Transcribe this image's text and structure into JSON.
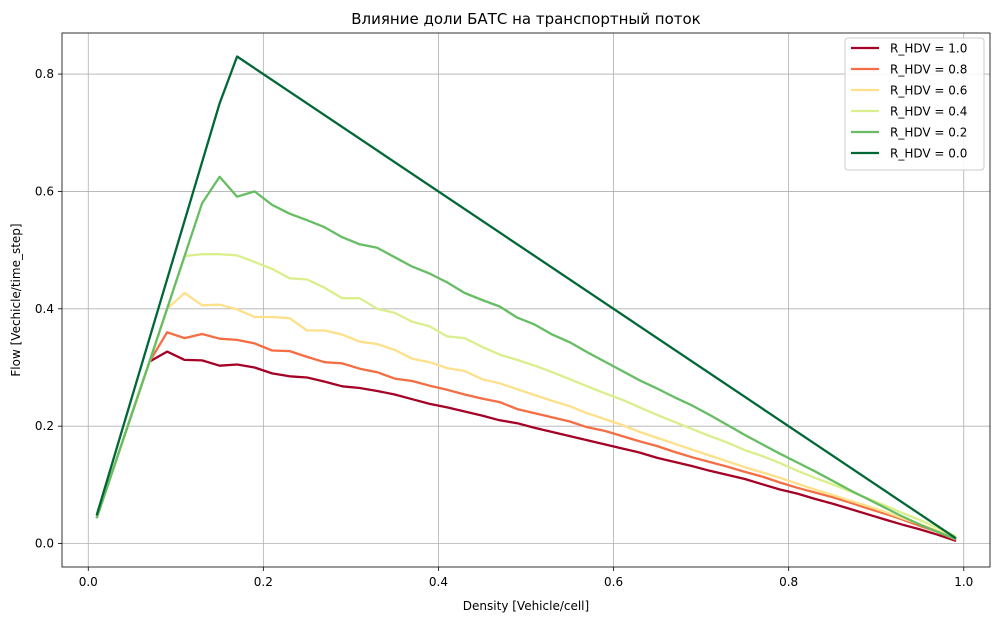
{
  "chart_data": {
    "type": "line",
    "title": "Влияние доли БАТС на транспортный поток",
    "xlabel": "Density [Vehicle/cell]",
    "ylabel": "Flow [Vechicle/time_step]",
    "xlim": [
      -0.03,
      1.03
    ],
    "ylim": [
      -0.04,
      0.87
    ],
    "xticks": [
      0.0,
      0.2,
      0.4,
      0.6,
      0.8,
      1.0
    ],
    "yticks": [
      0.0,
      0.2,
      0.4,
      0.6,
      0.8
    ],
    "grid": true,
    "legend_position": "top-right",
    "series": [
      {
        "name": "R_HDV = 1.0",
        "color": "#a50026",
        "x": [
          0.01,
          0.07,
          0.09,
          0.11,
          0.13,
          0.15,
          0.17,
          0.19,
          0.21,
          0.23,
          0.25,
          0.27,
          0.29,
          0.31,
          0.33,
          0.35,
          0.37,
          0.39,
          0.41,
          0.43,
          0.45,
          0.47,
          0.49,
          0.51,
          0.53,
          0.55,
          0.57,
          0.59,
          0.61,
          0.63,
          0.65,
          0.67,
          0.69,
          0.71,
          0.73,
          0.75,
          0.77,
          0.79,
          0.81,
          0.83,
          0.85,
          0.87,
          0.89,
          0.91,
          0.93,
          0.95,
          0.97,
          0.99
        ],
        "y": [
          0.045,
          0.31,
          0.327,
          0.313,
          0.312,
          0.303,
          0.305,
          0.3,
          0.29,
          0.285,
          0.283,
          0.276,
          0.268,
          0.265,
          0.26,
          0.254,
          0.246,
          0.238,
          0.232,
          0.225,
          0.218,
          0.21,
          0.205,
          0.197,
          0.19,
          0.183,
          0.176,
          0.169,
          0.162,
          0.155,
          0.146,
          0.139,
          0.132,
          0.124,
          0.117,
          0.11,
          0.101,
          0.092,
          0.085,
          0.076,
          0.068,
          0.059,
          0.05,
          0.041,
          0.032,
          0.024,
          0.015,
          0.005
        ]
      },
      {
        "name": "R_HDV = 0.8",
        "color": "#f46d43",
        "x": [
          0.01,
          0.07,
          0.09,
          0.11,
          0.13,
          0.15,
          0.17,
          0.19,
          0.21,
          0.23,
          0.25,
          0.27,
          0.29,
          0.31,
          0.33,
          0.35,
          0.37,
          0.39,
          0.41,
          0.43,
          0.45,
          0.47,
          0.49,
          0.51,
          0.53,
          0.55,
          0.57,
          0.59,
          0.61,
          0.63,
          0.65,
          0.67,
          0.69,
          0.71,
          0.73,
          0.75,
          0.77,
          0.79,
          0.81,
          0.83,
          0.85,
          0.87,
          0.89,
          0.91,
          0.93,
          0.95,
          0.97,
          0.99
        ],
        "y": [
          0.045,
          0.31,
          0.36,
          0.35,
          0.357,
          0.349,
          0.347,
          0.341,
          0.329,
          0.328,
          0.318,
          0.309,
          0.307,
          0.298,
          0.292,
          0.281,
          0.277,
          0.269,
          0.262,
          0.254,
          0.247,
          0.241,
          0.229,
          0.222,
          0.215,
          0.208,
          0.198,
          0.192,
          0.183,
          0.174,
          0.166,
          0.156,
          0.147,
          0.139,
          0.131,
          0.122,
          0.114,
          0.104,
          0.095,
          0.087,
          0.079,
          0.07,
          0.06,
          0.051,
          0.041,
          0.03,
          0.02,
          0.007
        ]
      },
      {
        "name": "R_HDV = 0.6",
        "color": "#fee08b",
        "x": [
          0.01,
          0.07,
          0.09,
          0.11,
          0.13,
          0.15,
          0.17,
          0.19,
          0.21,
          0.23,
          0.25,
          0.27,
          0.29,
          0.31,
          0.33,
          0.35,
          0.37,
          0.39,
          0.41,
          0.43,
          0.45,
          0.47,
          0.49,
          0.51,
          0.53,
          0.55,
          0.57,
          0.59,
          0.61,
          0.63,
          0.65,
          0.67,
          0.69,
          0.71,
          0.73,
          0.75,
          0.77,
          0.79,
          0.81,
          0.83,
          0.85,
          0.87,
          0.89,
          0.91,
          0.93,
          0.95,
          0.97,
          0.99
        ],
        "y": [
          0.045,
          0.31,
          0.4,
          0.427,
          0.406,
          0.407,
          0.399,
          0.386,
          0.386,
          0.384,
          0.363,
          0.363,
          0.356,
          0.344,
          0.34,
          0.33,
          0.315,
          0.309,
          0.299,
          0.294,
          0.28,
          0.273,
          0.263,
          0.253,
          0.243,
          0.234,
          0.222,
          0.212,
          0.202,
          0.19,
          0.18,
          0.17,
          0.16,
          0.15,
          0.14,
          0.13,
          0.121,
          0.112,
          0.102,
          0.092,
          0.083,
          0.073,
          0.064,
          0.054,
          0.043,
          0.033,
          0.022,
          0.01
        ]
      },
      {
        "name": "R_HDV = 0.4",
        "color": "#d9ef8b",
        "x": [
          0.01,
          0.07,
          0.09,
          0.11,
          0.13,
          0.15,
          0.17,
          0.19,
          0.21,
          0.23,
          0.25,
          0.27,
          0.29,
          0.31,
          0.33,
          0.35,
          0.37,
          0.39,
          0.41,
          0.43,
          0.45,
          0.47,
          0.49,
          0.51,
          0.53,
          0.55,
          0.57,
          0.59,
          0.61,
          0.63,
          0.65,
          0.67,
          0.69,
          0.71,
          0.73,
          0.75,
          0.77,
          0.79,
          0.81,
          0.83,
          0.85,
          0.87,
          0.89,
          0.91,
          0.93,
          0.95,
          0.97,
          0.99
        ],
        "y": [
          0.045,
          0.31,
          0.4,
          0.49,
          0.493,
          0.493,
          0.491,
          0.48,
          0.468,
          0.452,
          0.45,
          0.436,
          0.418,
          0.418,
          0.4,
          0.393,
          0.378,
          0.37,
          0.353,
          0.35,
          0.335,
          0.322,
          0.313,
          0.303,
          0.292,
          0.28,
          0.268,
          0.256,
          0.245,
          0.232,
          0.219,
          0.207,
          0.195,
          0.183,
          0.172,
          0.159,
          0.149,
          0.137,
          0.124,
          0.112,
          0.101,
          0.089,
          0.077,
          0.065,
          0.052,
          0.04,
          0.027,
          0.013
        ]
      },
      {
        "name": "R_HDV = 0.2",
        "color": "#66bd63",
        "x": [
          0.01,
          0.07,
          0.09,
          0.11,
          0.13,
          0.15,
          0.17,
          0.19,
          0.21,
          0.23,
          0.25,
          0.27,
          0.29,
          0.31,
          0.33,
          0.35,
          0.37,
          0.39,
          0.41,
          0.43,
          0.45,
          0.47,
          0.49,
          0.51,
          0.53,
          0.55,
          0.57,
          0.59,
          0.61,
          0.63,
          0.65,
          0.67,
          0.69,
          0.71,
          0.73,
          0.75,
          0.77,
          0.79,
          0.81,
          0.83,
          0.85,
          0.87,
          0.89,
          0.91,
          0.93,
          0.95,
          0.97,
          0.99
        ],
        "y": [
          0.045,
          0.31,
          0.4,
          0.49,
          0.58,
          0.625,
          0.591,
          0.6,
          0.577,
          0.562,
          0.551,
          0.539,
          0.522,
          0.51,
          0.504,
          0.488,
          0.472,
          0.46,
          0.445,
          0.427,
          0.415,
          0.404,
          0.385,
          0.373,
          0.356,
          0.343,
          0.326,
          0.31,
          0.294,
          0.278,
          0.264,
          0.249,
          0.235,
          0.219,
          0.202,
          0.185,
          0.169,
          0.153,
          0.138,
          0.123,
          0.107,
          0.091,
          0.076,
          0.061,
          0.046,
          0.032,
          0.02,
          0.008
        ]
      },
      {
        "name": "R_HDV = 0.0",
        "color": "#006837",
        "x": [
          0.01,
          0.15,
          0.17,
          0.99
        ],
        "y": [
          0.05,
          0.75,
          0.83,
          0.01
        ]
      }
    ]
  }
}
